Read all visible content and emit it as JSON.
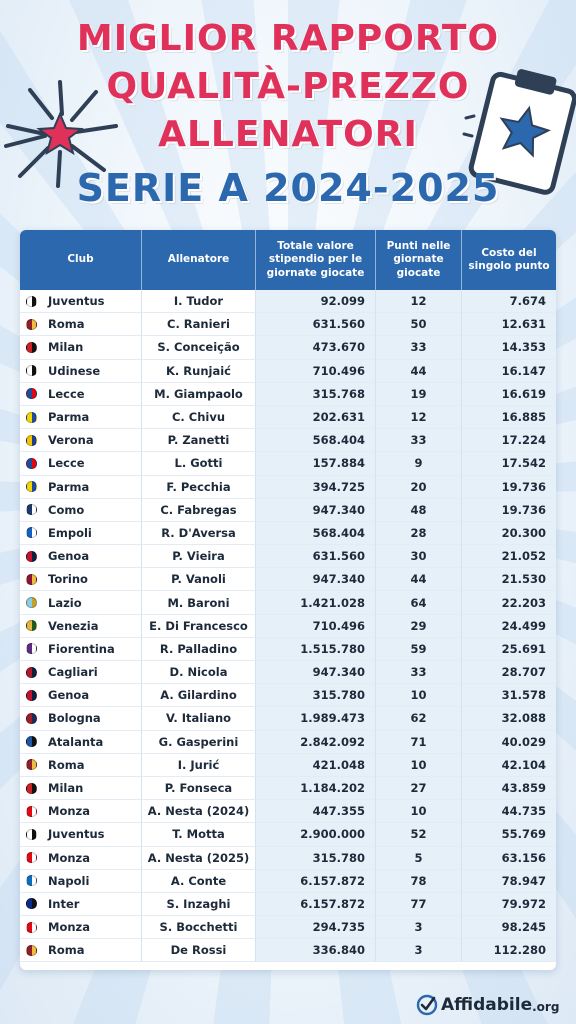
{
  "title": {
    "line1": "MIGLIOR RAPPORTO",
    "line2": "QUALITÀ-PREZZO",
    "line3": "ALLENATORI",
    "line4": "SERIE A 2024-2025"
  },
  "colors": {
    "title_red": "#e0315a",
    "title_blue": "#2b68ae",
    "header_bg": "#2b68ae"
  },
  "table": {
    "headers": {
      "club": "Club",
      "coach": "Allenatore",
      "salary": "Totale valore stipendio per le giornate giocate",
      "points": "Punti nelle giornate giocate",
      "cost": "Costo del singolo punto"
    },
    "rows": [
      {
        "club": "Juventus",
        "coach": "I. Tudor",
        "salary": "92.099",
        "points": "12",
        "cost": "7.674",
        "badge_color": "#ffffff",
        "badge_accent": "#111111"
      },
      {
        "club": "Roma",
        "coach": "C. Ranieri",
        "salary": "631.560",
        "points": "50",
        "cost": "12.631",
        "badge_color": "#8e1f2f",
        "badge_accent": "#f0bc42"
      },
      {
        "club": "Milan",
        "coach": "S. Conceição",
        "salary": "473.670",
        "points": "33",
        "cost": "14.353",
        "badge_color": "#d11f26",
        "badge_accent": "#111111"
      },
      {
        "club": "Udinese",
        "coach": "K. Runjaić",
        "salary": "710.496",
        "points": "44",
        "cost": "16.147",
        "badge_color": "#ffffff",
        "badge_accent": "#111111"
      },
      {
        "club": "Lecce",
        "coach": "M. Giampaolo",
        "salary": "315.768",
        "points": "19",
        "cost": "16.619",
        "badge_color": "#1d4e9e",
        "badge_accent": "#e30613"
      },
      {
        "club": "Parma",
        "coach": "C. Chivu",
        "salary": "202.631",
        "points": "12",
        "cost": "16.885",
        "badge_color": "#f4d600",
        "badge_accent": "#1d4e9e"
      },
      {
        "club": "Verona",
        "coach": "P. Zanetti",
        "salary": "568.404",
        "points": "33",
        "cost": "17.224",
        "badge_color": "#f5c400",
        "badge_accent": "#1d3f8c"
      },
      {
        "club": "Lecce",
        "coach": "L. Gotti",
        "salary": "157.884",
        "points": "9",
        "cost": "17.542",
        "badge_color": "#1d4e9e",
        "badge_accent": "#e30613"
      },
      {
        "club": "Parma",
        "coach": "F. Pecchia",
        "salary": "394.725",
        "points": "20",
        "cost": "19.736",
        "badge_color": "#f4d600",
        "badge_accent": "#1d4e9e"
      },
      {
        "club": "Como",
        "coach": "C. Fabregas",
        "salary": "947.340",
        "points": "48",
        "cost": "19.736",
        "badge_color": "#1b3a6b",
        "badge_accent": "#ffffff"
      },
      {
        "club": "Empoli",
        "coach": "R. D'Aversa",
        "salary": "568.404",
        "points": "28",
        "cost": "20.300",
        "badge_color": "#1560bd",
        "badge_accent": "#ffffff"
      },
      {
        "club": "Genoa",
        "coach": "P. Vieira",
        "salary": "631.560",
        "points": "30",
        "cost": "21.052",
        "badge_color": "#c8102e",
        "badge_accent": "#0a2240"
      },
      {
        "club": "Torino",
        "coach": "P. Vanoli",
        "salary": "947.340",
        "points": "44",
        "cost": "21.530",
        "badge_color": "#8a1538",
        "badge_accent": "#f0bc42"
      },
      {
        "club": "Lazio",
        "coach": "M. Baroni",
        "salary": "1.421.028",
        "points": "64",
        "cost": "22.203",
        "badge_color": "#87ceeb",
        "badge_accent": "#c9a227"
      },
      {
        "club": "Venezia",
        "coach": "E. Di Francesco",
        "salary": "710.496",
        "points": "29",
        "cost": "24.499",
        "badge_color": "#e8b53d",
        "badge_accent": "#1b5e20"
      },
      {
        "club": "Fiorentina",
        "coach": "R. Palladino",
        "salary": "1.515.780",
        "points": "59",
        "cost": "25.691",
        "badge_color": "#5a2d82",
        "badge_accent": "#ffffff"
      },
      {
        "club": "Cagliari",
        "coach": "D. Nicola",
        "salary": "947.340",
        "points": "33",
        "cost": "28.707",
        "badge_color": "#b2182b",
        "badge_accent": "#0a2240"
      },
      {
        "club": "Genoa",
        "coach": "A. Gilardino",
        "salary": "315.780",
        "points": "10",
        "cost": "31.578",
        "badge_color": "#c8102e",
        "badge_accent": "#0a2240"
      },
      {
        "club": "Bologna",
        "coach": "V. Italiano",
        "salary": "1.989.473",
        "points": "62",
        "cost": "32.088",
        "badge_color": "#a21c26",
        "badge_accent": "#1a2a5a"
      },
      {
        "club": "Atalanta",
        "coach": "G. Gasperini",
        "salary": "2.842.092",
        "points": "71",
        "cost": "40.029",
        "badge_color": "#1e57a4",
        "badge_accent": "#111111"
      },
      {
        "club": "Roma",
        "coach": "I. Jurić",
        "salary": "421.048",
        "points": "10",
        "cost": "42.104",
        "badge_color": "#8e1f2f",
        "badge_accent": "#f0bc42"
      },
      {
        "club": "Milan",
        "coach": "P. Fonseca",
        "salary": "1.184.202",
        "points": "27",
        "cost": "43.859",
        "badge_color": "#d11f26",
        "badge_accent": "#111111"
      },
      {
        "club": "Monza",
        "coach": "A. Nesta (2024)",
        "salary": "447.355",
        "points": "10",
        "cost": "44.735",
        "badge_color": "#e30613",
        "badge_accent": "#ffffff"
      },
      {
        "club": "Juventus",
        "coach": "T. Motta",
        "salary": "2.900.000",
        "points": "52",
        "cost": "55.769",
        "badge_color": "#ffffff",
        "badge_accent": "#111111"
      },
      {
        "club": "Monza",
        "coach": "A. Nesta (2025)",
        "salary": "315.780",
        "points": "5",
        "cost": "63.156",
        "badge_color": "#e30613",
        "badge_accent": "#ffffff"
      },
      {
        "club": "Napoli",
        "coach": "A. Conte",
        "salary": "6.157.872",
        "points": "78",
        "cost": "78.947",
        "badge_color": "#0a6ebd",
        "badge_accent": "#ffffff"
      },
      {
        "club": "Inter",
        "coach": "S. Inzaghi",
        "salary": "6.157.872",
        "points": "77",
        "cost": "79.972",
        "badge_color": "#0a2a8c",
        "badge_accent": "#111111"
      },
      {
        "club": "Monza",
        "coach": "S. Bocchetti",
        "salary": "294.735",
        "points": "3",
        "cost": "98.245",
        "badge_color": "#e30613",
        "badge_accent": "#ffffff"
      },
      {
        "club": "Roma",
        "coach": "De Rossi",
        "salary": "336.840",
        "points": "3",
        "cost": "112.280",
        "badge_color": "#8e1f2f",
        "badge_accent": "#f0bc42"
      }
    ]
  },
  "footer": {
    "brand": "Affidabile",
    "suffix": ".org"
  },
  "icons": {
    "left": "star-burst-icon",
    "right": "clipboard-star-icon",
    "logo": "check-shield-icon"
  }
}
